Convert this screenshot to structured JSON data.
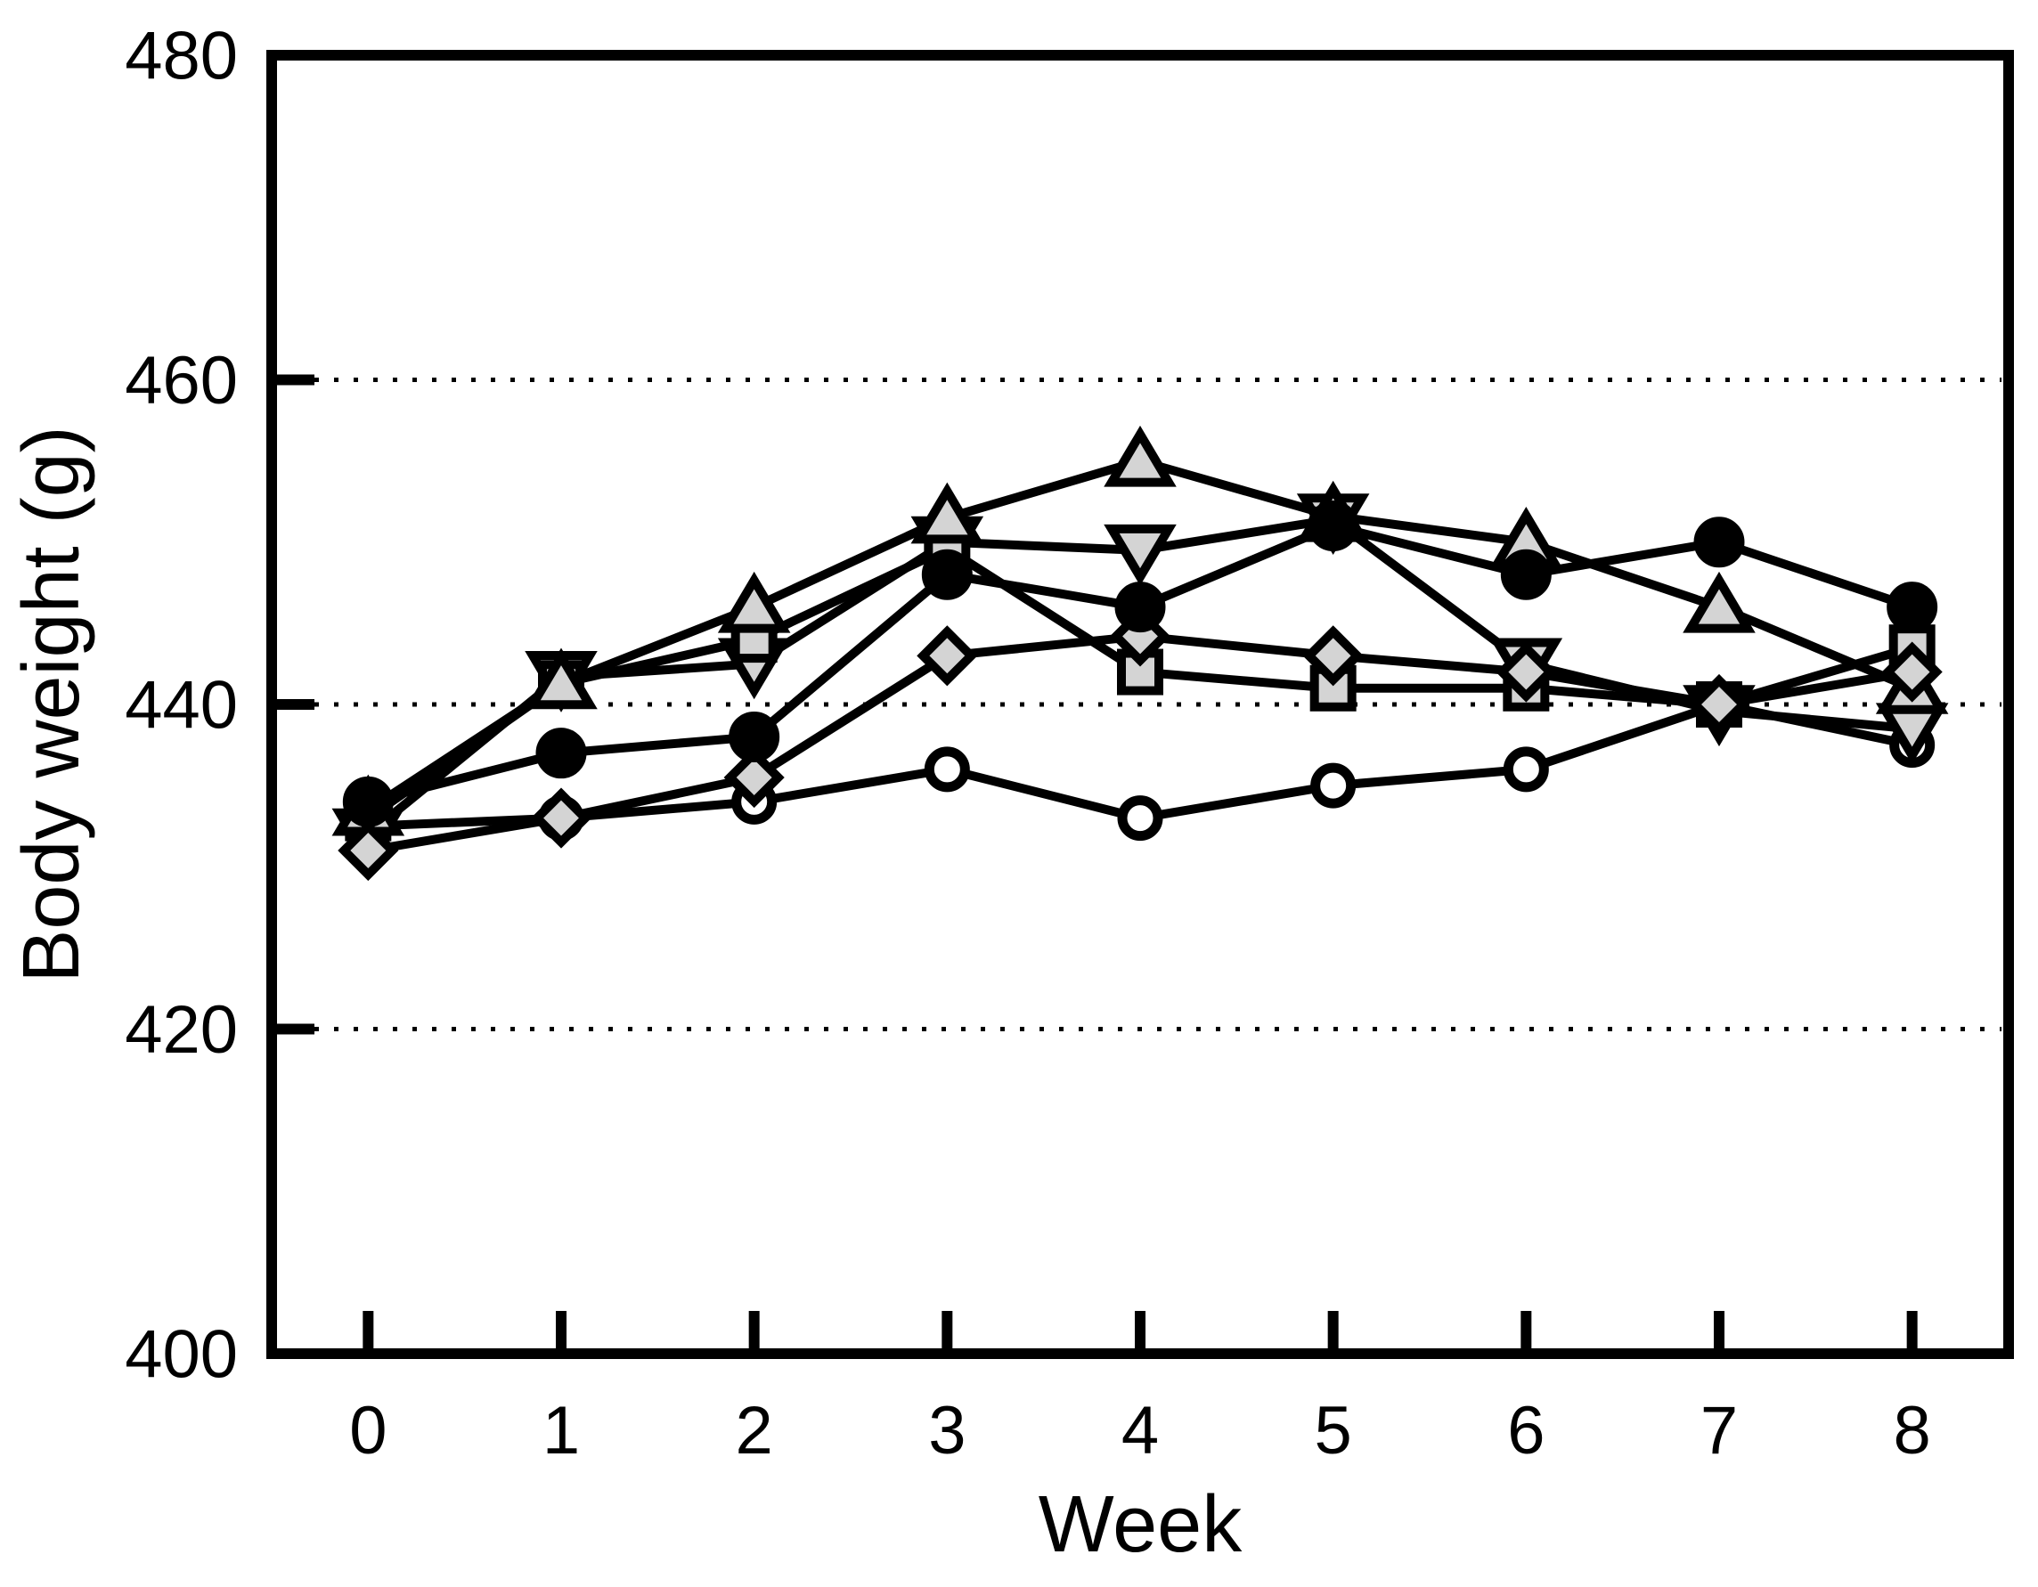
{
  "figure": {
    "background": "#ffffff",
    "frame_color": "#000000"
  },
  "chart_data": {
    "type": "line",
    "title": "",
    "xlabel": "Week",
    "ylabel": "Body weight (g)",
    "x": [
      0,
      1,
      2,
      3,
      4,
      5,
      6,
      7,
      8
    ],
    "xticks": [
      0,
      1,
      2,
      3,
      4,
      5,
      6,
      7,
      8
    ],
    "yticks": [
      400,
      420,
      440,
      460,
      480
    ],
    "xlim": [
      -0.5,
      8.5
    ],
    "ylim": [
      400,
      480
    ],
    "grid_y_values": [
      420,
      440,
      460
    ],
    "grid_style": "dotted",
    "legend": "none",
    "colors": {
      "line": "#000000",
      "marker_edge": "#000000",
      "gray_fill": "#d4d4d4",
      "white_fill": "#ffffff",
      "black_fill": "#000000"
    },
    "series": [
      {
        "name": "open-circle",
        "marker": "circle",
        "fill": "white",
        "values": [
          432.5,
          433,
          434,
          436,
          433,
          435,
          436,
          440,
          437.5
        ]
      },
      {
        "name": "gray-triangle-down",
        "marker": "triangle-down",
        "fill": "gray",
        "values": [
          432,
          441.7,
          442.5,
          450,
          449.5,
          451.4,
          442.5,
          439.6,
          438.5
        ]
      },
      {
        "name": "gray-square",
        "marker": "square",
        "fill": "gray",
        "values": [
          433,
          441.3,
          444,
          449.6,
          442,
          441,
          441,
          440,
          443.5
        ]
      },
      {
        "name": "gray-triangle-up",
        "marker": "triangle-up",
        "fill": "gray",
        "values": [
          433.5,
          441.3,
          446,
          451.5,
          455,
          451.6,
          450,
          446,
          441
        ]
      },
      {
        "name": "gray-diamond",
        "marker": "diamond",
        "fill": "gray",
        "values": [
          431,
          433,
          435.5,
          443,
          444.2,
          443,
          442,
          440,
          442
        ]
      },
      {
        "name": "filled-circle",
        "marker": "circle",
        "fill": "black",
        "values": [
          434,
          437,
          438,
          448,
          446,
          451,
          448,
          450,
          446
        ]
      }
    ]
  }
}
